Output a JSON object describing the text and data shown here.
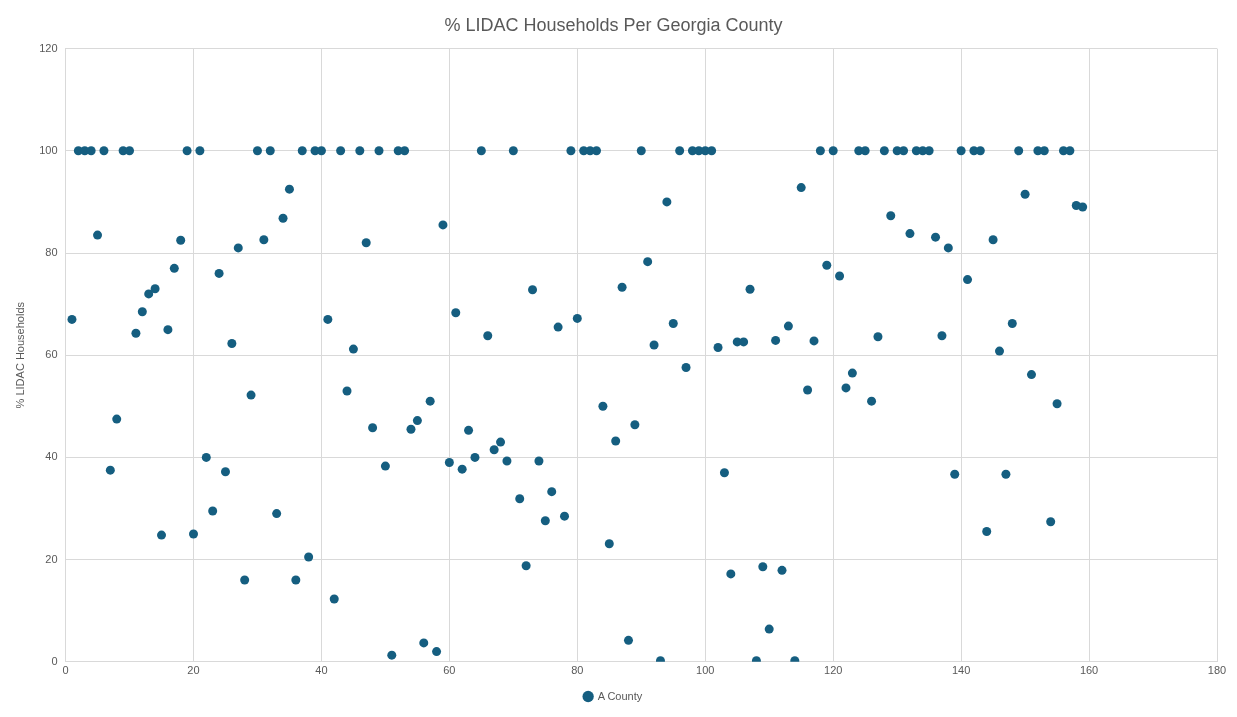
{
  "chart_data": {
    "type": "scatter",
    "title": "% LIDAC Households Per Georgia County",
    "ylabel": "% LIDAC Households",
    "x": [
      1,
      2,
      3,
      4,
      5,
      6,
      7,
      8,
      9,
      10,
      11,
      12,
      13,
      14,
      15,
      16,
      17,
      18,
      19,
      20,
      21,
      22,
      23,
      24,
      25,
      26,
      27,
      28,
      29,
      30,
      31,
      32,
      33,
      34,
      35,
      36,
      37,
      38,
      39,
      40,
      41,
      42,
      43,
      44,
      45,
      46,
      47,
      48,
      49,
      50,
      51,
      52,
      53,
      54,
      55,
      56,
      57,
      58,
      59,
      60,
      61,
      62,
      63,
      64,
      65,
      66,
      67,
      68,
      69,
      70,
      71,
      72,
      73,
      74,
      75,
      76,
      77,
      78,
      79,
      80,
      81,
      82,
      83,
      84,
      85,
      86,
      87,
      88,
      89,
      90,
      91,
      92,
      93,
      94,
      95,
      96,
      97,
      98,
      99,
      100,
      101,
      102,
      103,
      104,
      105,
      106,
      107,
      108,
      109,
      110,
      111,
      112,
      113,
      114,
      115,
      116,
      117,
      118,
      119,
      120,
      121,
      122,
      123,
      124,
      125,
      126,
      127,
      128,
      129,
      130,
      131,
      132,
      133,
      134,
      135,
      136,
      137,
      138,
      139,
      140,
      141,
      142,
      143,
      144,
      145,
      146,
      147,
      148,
      149,
      150,
      151,
      152,
      153,
      154,
      155,
      156,
      157,
      158,
      159
    ],
    "series": [
      {
        "name": "A County",
        "color": "#155e80",
        "values": [
          67,
          100,
          100,
          100,
          83.5,
          100,
          37.5,
          47.5,
          100,
          100,
          64.3,
          68.5,
          72,
          73,
          24.8,
          65,
          77,
          82.5,
          100,
          25,
          100,
          40,
          29.5,
          76,
          37.2,
          62.3,
          81,
          16,
          52.2,
          100,
          82.6,
          100,
          29,
          86.8,
          92.5,
          16,
          100,
          20.5,
          100,
          100,
          67,
          12.3,
          100,
          53,
          61.2,
          100,
          82,
          45.8,
          100,
          38.3,
          1.3,
          100,
          100,
          45.5,
          47.2,
          3.7,
          51,
          2,
          85.5,
          39,
          68.3,
          37.7,
          45.3,
          40,
          100,
          63.8,
          41.5,
          43,
          39.3,
          100,
          31.9,
          18.8,
          72.8,
          39.3,
          27.6,
          33.3,
          65.5,
          28.5,
          100,
          67.2,
          100,
          100,
          100,
          50,
          23.1,
          43.2,
          73.3,
          4.2,
          46.4,
          100,
          78.3,
          62,
          0.2,
          90,
          66.2,
          100,
          57.6,
          100,
          100,
          100,
          100,
          61.5,
          37,
          17.2,
          62.6,
          62.6,
          72.9,
          0.2,
          18.6,
          6.4,
          62.9,
          17.9,
          65.7,
          0.2,
          92.8,
          53.2,
          62.8,
          100,
          77.6,
          100,
          75.5,
          53.6,
          56.5,
          100,
          100,
          51,
          63.6,
          100,
          87.3,
          100,
          100,
          83.8,
          100,
          100,
          100,
          83.1,
          63.8,
          81,
          36.7,
          100,
          74.8,
          100,
          100,
          25.5,
          82.6,
          60.8,
          36.7,
          66.2,
          100,
          91.5,
          56.2,
          100,
          100,
          27.4,
          50.5,
          100,
          100,
          89.3,
          89
        ]
      }
    ],
    "xlim": [
      0,
      180
    ],
    "xticks": [
      0,
      20,
      40,
      60,
      80,
      100,
      120,
      140,
      160,
      180
    ],
    "ylim": [
      0,
      120
    ],
    "yticks": [
      0,
      20,
      40,
      60,
      80,
      100,
      120
    ],
    "grid": true,
    "legend": "bottom",
    "marker": "circle"
  }
}
